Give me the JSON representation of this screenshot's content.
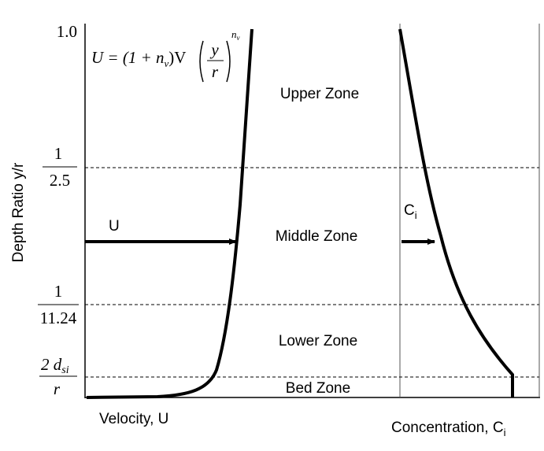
{
  "y_axis": {
    "title": "Depth Ratio y/r",
    "labels": [
      {
        "text": "1.0"
      },
      {
        "numerator": "1",
        "denominator": "2.5"
      },
      {
        "numerator": "1",
        "denominator": "11.24"
      },
      {
        "numerator": "2 d",
        "numerator_sub": "si",
        "denominator": "r"
      }
    ]
  },
  "zones": [
    "Upper Zone",
    "Middle Zone",
    "Lower Zone",
    "Bed Zone"
  ],
  "velocity": {
    "arrow_label": "U",
    "axis_label": "Velocity, U"
  },
  "concentration": {
    "arrow_label": "C",
    "arrow_label_sub": "i",
    "axis_label": "Concentration, C",
    "axis_label_sub": "i"
  },
  "equation": {
    "lhs": "U = (1 + n",
    "lhs_sub": "v",
    "mid": ")V",
    "frac_num": "y",
    "frac_den": "r",
    "exp": "n",
    "exp_sub": "v"
  }
}
